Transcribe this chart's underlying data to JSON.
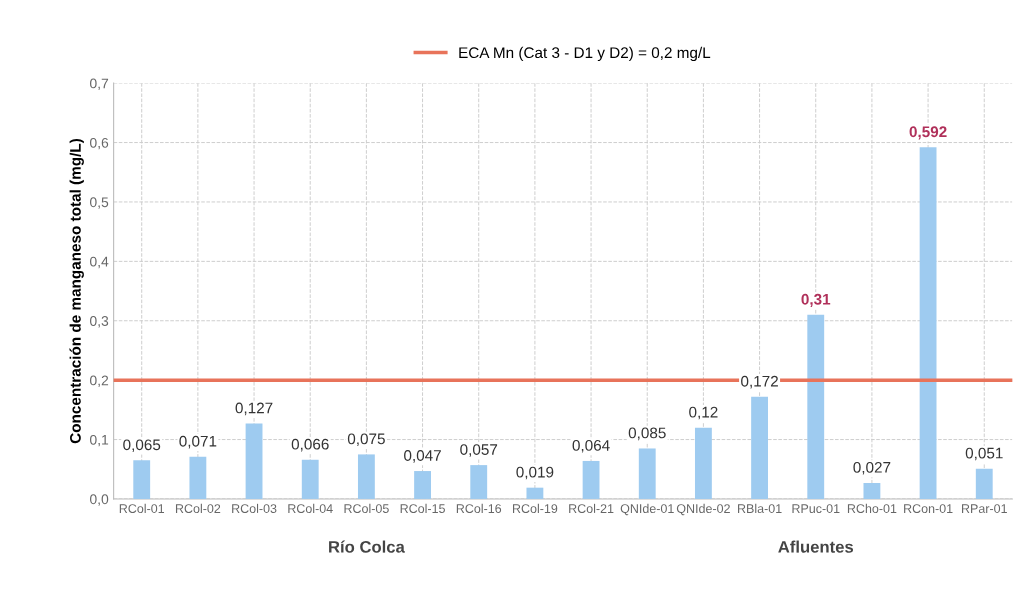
{
  "chart_data": {
    "type": "bar",
    "ylabel": "Concentración de manganeso total (mg/L)",
    "categories": [
      "RCol-01",
      "RCol-02",
      "RCol-03",
      "RCol-04",
      "RCol-05",
      "RCol-15",
      "RCol-16",
      "RCol-19",
      "RCol-21",
      "QNIde-01",
      "QNIde-02",
      "RBla-01",
      "RPuc-01",
      "RCho-01",
      "RCon-01",
      "RPar-01"
    ],
    "values": [
      0.065,
      0.071,
      0.127,
      0.066,
      0.075,
      0.047,
      0.057,
      0.019,
      0.064,
      0.085,
      0.12,
      0.172,
      0.31,
      0.027,
      0.592,
      0.051
    ],
    "value_labels": [
      "0,065",
      "0,071",
      "0,127",
      "0,066",
      "0,075",
      "0,047",
      "0,057",
      "0,019",
      "0,064",
      "0,085",
      "0,12",
      "0,172",
      "0,31",
      "0,027",
      "0,592",
      "0,051"
    ],
    "color": "#9ecbf0",
    "ylim": [
      0,
      0.7
    ],
    "yticks": [
      {
        "value": 0,
        "label": "0,0"
      },
      {
        "value": 0.1,
        "label": "0,1"
      },
      {
        "value": 0.2,
        "label": "0,2"
      },
      {
        "value": 0.3,
        "label": "0,3"
      },
      {
        "value": 0.4,
        "label": "0,4"
      },
      {
        "value": 0.5,
        "label": "0,5"
      },
      {
        "value": 0.6,
        "label": "0,6"
      },
      {
        "value": 0.7,
        "label": "0,7"
      }
    ],
    "ref_lines": [
      {
        "axis": "y",
        "value": 0.2,
        "label": "ECA Mn (Cat 3 - D1 y D2) = 0,2 mg/L",
        "color": "#e8735a"
      }
    ],
    "annotations": [
      "Río Colca",
      "Afluentes"
    ],
    "grid": true,
    "legend": "top"
  }
}
